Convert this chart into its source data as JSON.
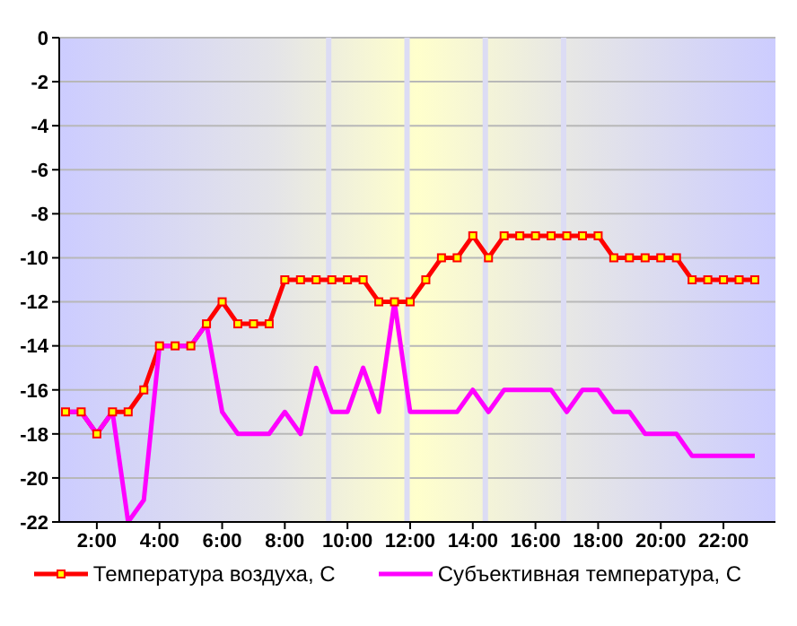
{
  "chart_data": {
    "type": "line",
    "x": [
      1,
      1.5,
      2,
      2.5,
      3,
      3.5,
      4,
      4.5,
      5,
      5.5,
      6,
      6.5,
      7,
      7.5,
      8,
      8.5,
      9,
      9.5,
      10,
      10.5,
      11,
      11.5,
      12,
      12.5,
      13,
      13.5,
      14,
      14.5,
      15,
      15.5,
      16,
      16.5,
      17,
      17.5,
      18,
      18.5,
      19,
      19.5,
      20,
      20.5,
      21,
      21.5,
      22,
      22.5,
      23
    ],
    "series": [
      {
        "name": "Температура воздуха, С",
        "color": "#ff0000",
        "marker": "square",
        "values": [
          -17,
          -17,
          -18,
          -17,
          -17,
          -16,
          -14,
          -14,
          -14,
          -13,
          -12,
          -13,
          -13,
          -13,
          -11,
          -11,
          -11,
          -11,
          -11,
          -11,
          -12,
          -12,
          -12,
          -11,
          -10,
          -10,
          -9,
          -10,
          -9,
          -9,
          -9,
          -9,
          -9,
          -9,
          -9,
          -10,
          -10,
          -10,
          -10,
          -10,
          -11,
          -11,
          -11,
          -11,
          -11
        ]
      },
      {
        "name": "Субъективная температура, С",
        "color": "#ff00ff",
        "marker": "none",
        "values": [
          -17,
          -17,
          -18,
          -17,
          -22,
          -21,
          -14,
          -14,
          -14,
          -13,
          -17,
          -18,
          -18,
          -18,
          -17,
          -18,
          -15,
          -17,
          -17,
          -15,
          -17,
          -12,
          -17,
          -17,
          -17,
          -17,
          -16,
          -17,
          -16,
          -16,
          -16,
          -16,
          -17,
          -16,
          -16,
          -17,
          -17,
          -18,
          -18,
          -18,
          -19,
          -19,
          -19,
          -19,
          -19
        ]
      }
    ],
    "xlim": [
      0.8,
      23.66
    ],
    "xticks": [
      {
        "value": 2,
        "label": "2:00"
      },
      {
        "value": 4,
        "label": "4:00"
      },
      {
        "value": 6,
        "label": "6:00"
      },
      {
        "value": 8,
        "label": "8:00"
      },
      {
        "value": 10,
        "label": "10:00"
      },
      {
        "value": 12,
        "label": "12:00"
      },
      {
        "value": 14,
        "label": "14:00"
      },
      {
        "value": 16,
        "label": "16:00"
      },
      {
        "value": 18,
        "label": "18:00"
      },
      {
        "value": 20,
        "label": "20:00"
      },
      {
        "value": 22,
        "label": "22:00"
      }
    ],
    "ylim": [
      -22,
      0
    ],
    "yticks": [
      -22,
      -20,
      -18,
      -16,
      -14,
      -12,
      -10,
      -8,
      -6,
      -4,
      -2,
      0
    ],
    "ref_lines": [
      {
        "axis": "x",
        "value": 9.4,
        "color": "#dcdcf4"
      },
      {
        "axis": "x",
        "value": 11.9,
        "color": "#dcdcf4"
      },
      {
        "axis": "x",
        "value": 14.4,
        "color": "#dcdcf4"
      },
      {
        "axis": "x",
        "value": 16.9,
        "color": "#dcdcf4"
      }
    ],
    "grid": "y",
    "legend": "bottom",
    "line_style": "solid"
  }
}
